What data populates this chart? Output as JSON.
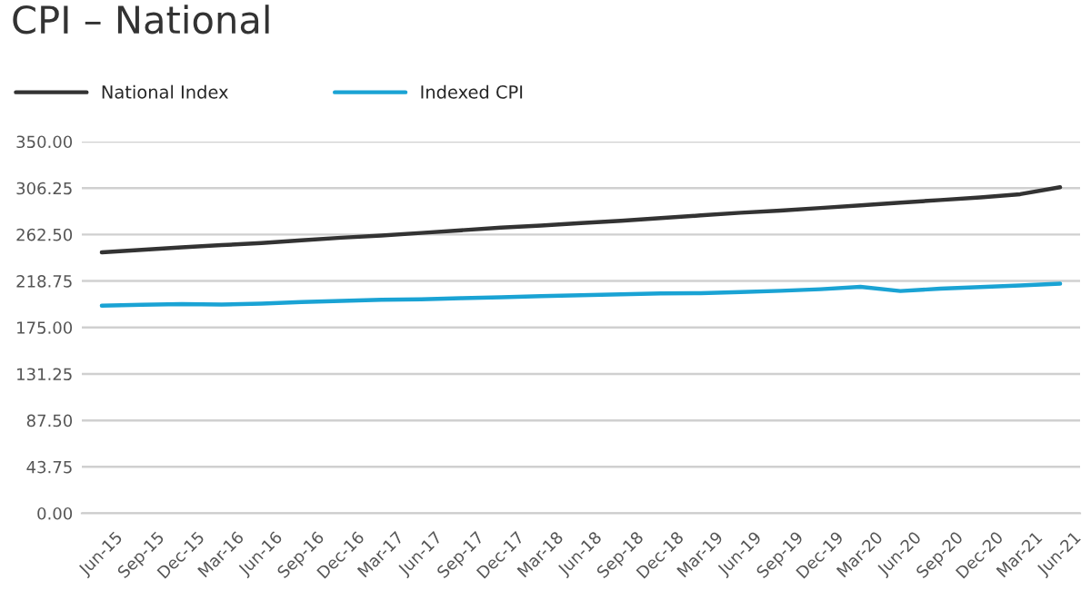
{
  "chart_data": {
    "type": "line",
    "title": "CPI – National",
    "categories": [
      "Jun-15",
      "Sep-15",
      "Dec-15",
      "Mar-16",
      "Jun-16",
      "Sep-16",
      "Dec-16",
      "Mar-17",
      "Jun-17",
      "Sep-17",
      "Dec-17",
      "Mar-18",
      "Jun-18",
      "Sep-18",
      "Dec-18",
      "Mar-19",
      "Jun-19",
      "Sep-19",
      "Dec-19",
      "Mar-20",
      "Jun-20",
      "Sep-20",
      "Dec-20",
      "Mar-21",
      "Jun-21"
    ],
    "series": [
      {
        "name": "National Index",
        "color": "#333333",
        "values": [
          245.7,
          248,
          250.5,
          252.5,
          254.5,
          257,
          259.5,
          261.5,
          264,
          266.5,
          269,
          271,
          273.3,
          275.5,
          278,
          280.5,
          283,
          285,
          287.5,
          290,
          292.5,
          295,
          297.5,
          300.5,
          307
        ]
      },
      {
        "name": "Indexed CPI",
        "color": "#1aa3d4",
        "values": [
          195.5,
          196.3,
          197,
          196.6,
          197.5,
          199,
          200,
          201,
          201.5,
          202.5,
          203.5,
          204.5,
          205.4,
          206.2,
          207,
          207.3,
          208.3,
          209.5,
          211,
          213.2,
          209.3,
          211.5,
          213,
          214.5,
          216.2
        ]
      }
    ],
    "ylim": [
      0,
      350
    ],
    "yticks": [
      {
        "value": 0,
        "label": "0.00"
      },
      {
        "value": 43.75,
        "label": "43.75"
      },
      {
        "value": 87.5,
        "label": "87.50"
      },
      {
        "value": 131.25,
        "label": "131.25"
      },
      {
        "value": 175,
        "label": "175.00"
      },
      {
        "value": 218.75,
        "label": "218.75"
      },
      {
        "value": 262.5,
        "label": "262.50"
      },
      {
        "value": 306.25,
        "label": "306.25"
      },
      {
        "value": 350,
        "label": "350.00"
      }
    ],
    "grid": "y",
    "legend": "top left",
    "marker": "none",
    "line_style": "solid"
  }
}
